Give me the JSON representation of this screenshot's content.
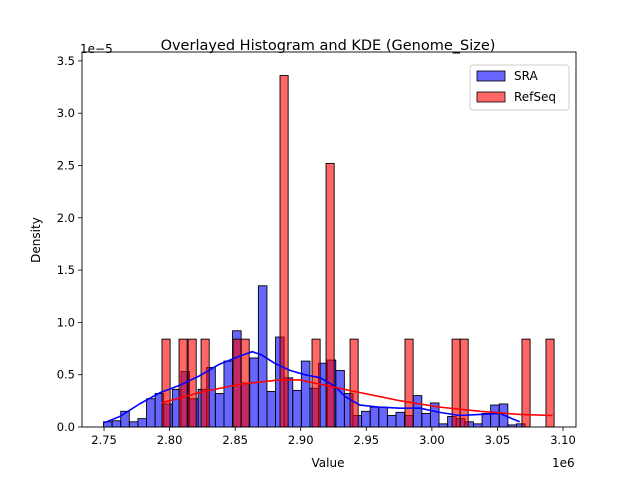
{
  "chart_data": {
    "type": "bar",
    "title": "Overlayed Histogram and KDE (Genome_Size)",
    "xlabel": "Value",
    "ylabel": "Density",
    "x_multiplier": "1e6",
    "y_multiplier": "1e−5",
    "xlim": [
      2.7332,
      3.1099
    ],
    "ylim": [
      0,
      3.585
    ],
    "xticks": [
      2.75,
      2.8,
      2.85,
      2.9,
      2.95,
      3.0,
      3.05,
      3.1
    ],
    "xtick_labels": [
      "2.75",
      "2.80",
      "2.85",
      "2.90",
      "2.95",
      "3.00",
      "3.05",
      "3.10"
    ],
    "yticks": [
      0,
      0.5,
      1.0,
      1.5,
      2.0,
      2.5,
      3.0,
      3.5
    ],
    "ytick_labels": [
      "0.0",
      "0.5",
      "1.0",
      "1.5",
      "2.0",
      "2.5",
      "3.0",
      "3.5"
    ],
    "grid": false,
    "legend_position": "top-right",
    "series": [
      {
        "name": "SRA",
        "color": "#0000ff",
        "bin_start": 2.7496,
        "bin_width": 0.00656,
        "heights": [
          0.05,
          0.06,
          0.15,
          0.05,
          0.08,
          0.27,
          0.32,
          0.22,
          0.36,
          0.53,
          0.27,
          0.36,
          0.57,
          0.32,
          0.63,
          0.92,
          0.42,
          0.66,
          1.35,
          0.34,
          0.86,
          0.47,
          0.35,
          0.63,
          0.37,
          0.61,
          0.64,
          0.54,
          0.32,
          0.11,
          0.15,
          0.19,
          0.19,
          0.11,
          0.14,
          0.11,
          0.3,
          0.13,
          0.23,
          0.03,
          0.1,
          0.08,
          0.05,
          0.03,
          0.13,
          0.21,
          0.22,
          0.02,
          0.03
        ],
        "kde": [
          [
            2.75,
            0.04
          ],
          [
            2.762,
            0.1
          ],
          [
            2.777,
            0.22
          ],
          [
            2.793,
            0.33
          ],
          [
            2.808,
            0.4
          ],
          [
            2.823,
            0.49
          ],
          [
            2.838,
            0.6
          ],
          [
            2.854,
            0.68
          ],
          [
            2.863,
            0.72
          ],
          [
            2.87,
            0.69
          ],
          [
            2.88,
            0.61
          ],
          [
            2.892,
            0.54
          ],
          [
            2.903,
            0.5
          ],
          [
            2.915,
            0.47
          ],
          [
            2.926,
            0.39
          ],
          [
            2.934,
            0.29
          ],
          [
            2.945,
            0.21
          ],
          [
            2.96,
            0.19
          ],
          [
            2.976,
            0.18
          ],
          [
            2.991,
            0.18
          ],
          [
            3.006,
            0.14
          ],
          [
            3.021,
            0.11
          ],
          [
            3.037,
            0.12
          ],
          [
            3.052,
            0.13
          ],
          [
            3.061,
            0.08
          ],
          [
            3.067,
            0.05
          ]
        ]
      },
      {
        "name": "RefSeq",
        "color": "#ff0000",
        "bin_width": 0.0062,
        "bars": [
          [
            2.7942,
            0.84
          ],
          [
            2.8072,
            0.84
          ],
          [
            2.8141,
            0.84
          ],
          [
            2.824,
            0.84
          ],
          [
            2.8484,
            0.84
          ],
          [
            2.8545,
            0.84
          ],
          [
            2.8842,
            3.36
          ],
          [
            2.9086,
            0.84
          ],
          [
            2.9193,
            2.52
          ],
          [
            2.9376,
            0.84
          ],
          [
            2.9795,
            0.84
          ],
          [
            3.0154,
            0.84
          ],
          [
            3.0215,
            0.84
          ],
          [
            3.0687,
            0.84
          ],
          [
            3.087,
            0.84
          ]
        ],
        "kde": [
          [
            2.794,
            0.23
          ],
          [
            2.823,
            0.33
          ],
          [
            2.854,
            0.41
          ],
          [
            2.884,
            0.45
          ],
          [
            2.899,
            0.45
          ],
          [
            2.922,
            0.39
          ],
          [
            2.945,
            0.33
          ],
          [
            2.976,
            0.25
          ],
          [
            3.006,
            0.19
          ],
          [
            3.037,
            0.15
          ],
          [
            3.067,
            0.12
          ],
          [
            3.092,
            0.11
          ]
        ]
      }
    ]
  }
}
